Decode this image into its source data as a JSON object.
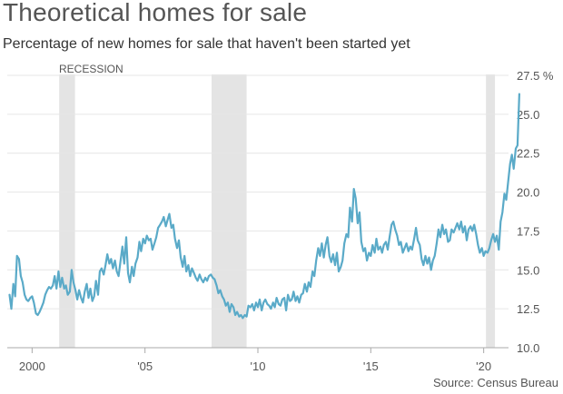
{
  "header": {
    "title": "Theoretical homes for sale",
    "subtitle": "Percentage of new homes for sale that haven't been started yet"
  },
  "footer": {
    "source": "Source: Census Bureau"
  },
  "colors": {
    "line": "#5aaac8",
    "recession": "#e4e4e4",
    "grid": "#e6e6e6",
    "axis": "#aaaaaa"
  },
  "chart_data": {
    "type": "line",
    "title": "Theoretical homes for sale",
    "subtitle": "Percentage of new homes for sale that haven't been started yet",
    "ylim": [
      10,
      27.5
    ],
    "xlim": [
      1998.9,
      2021.1
    ],
    "y_ticks": [
      10.0,
      12.5,
      15.0,
      17.5,
      20.0,
      22.5,
      25.0,
      27.5
    ],
    "y_tick_labels": [
      "10.0",
      "12.5",
      "15.0",
      "17.5",
      "20.0",
      "22.5",
      "25.0",
      "27.5 %"
    ],
    "x_ticks": [
      2000,
      2005,
      2010,
      2015,
      2020
    ],
    "x_tick_labels": [
      "2000",
      "'05",
      "'10",
      "'15",
      "'20"
    ],
    "grid": "horizontal",
    "annotations": [
      {
        "text": "RECESSION"
      }
    ],
    "recessions": [
      {
        "start": 2001.2,
        "end": 2001.9
      },
      {
        "start": 2007.95,
        "end": 2009.5
      },
      {
        "start": 2020.1,
        "end": 2020.5
      }
    ],
    "series": [
      {
        "points": [
          [
            1999.0,
            13.4
          ],
          [
            1999.08,
            12.5
          ],
          [
            1999.17,
            14.1
          ],
          [
            1999.25,
            13.3
          ],
          [
            1999.33,
            15.9
          ],
          [
            1999.42,
            15.7
          ],
          [
            1999.5,
            14.6
          ],
          [
            1999.58,
            14.2
          ],
          [
            1999.67,
            13.4
          ],
          [
            1999.75,
            13.1
          ],
          [
            1999.83,
            13.0
          ],
          [
            1999.92,
            13.2
          ],
          [
            2000.0,
            13.3
          ],
          [
            2000.08,
            12.9
          ],
          [
            2000.17,
            12.2
          ],
          [
            2000.25,
            12.1
          ],
          [
            2000.33,
            12.3
          ],
          [
            2000.42,
            12.6
          ],
          [
            2000.5,
            12.9
          ],
          [
            2000.58,
            13.4
          ],
          [
            2000.67,
            13.7
          ],
          [
            2000.75,
            13.9
          ],
          [
            2000.83,
            13.8
          ],
          [
            2000.92,
            14.0
          ],
          [
            2001.0,
            14.6
          ],
          [
            2001.08,
            13.8
          ],
          [
            2001.17,
            14.9
          ],
          [
            2001.25,
            13.9
          ],
          [
            2001.33,
            14.5
          ],
          [
            2001.42,
            13.8
          ],
          [
            2001.5,
            14.0
          ],
          [
            2001.58,
            13.4
          ],
          [
            2001.67,
            13.6
          ],
          [
            2001.75,
            15.0
          ],
          [
            2001.83,
            14.2
          ],
          [
            2001.92,
            13.7
          ],
          [
            2002.0,
            13.1
          ],
          [
            2002.08,
            13.7
          ],
          [
            2002.17,
            13.2
          ],
          [
            2002.25,
            12.9
          ],
          [
            2002.33,
            13.6
          ],
          [
            2002.42,
            14.1
          ],
          [
            2002.5,
            13.2
          ],
          [
            2002.58,
            13.8
          ],
          [
            2002.67,
            13.0
          ],
          [
            2002.75,
            13.3
          ],
          [
            2002.83,
            14.3
          ],
          [
            2002.92,
            13.4
          ],
          [
            2003.0,
            14.9
          ],
          [
            2003.08,
            15.1
          ],
          [
            2003.17,
            14.7
          ],
          [
            2003.25,
            15.3
          ],
          [
            2003.33,
            16.0
          ],
          [
            2003.42,
            15.4
          ],
          [
            2003.5,
            15.7
          ],
          [
            2003.58,
            15.1
          ],
          [
            2003.67,
            15.6
          ],
          [
            2003.75,
            14.9
          ],
          [
            2003.83,
            14.6
          ],
          [
            2003.92,
            15.6
          ],
          [
            2004.0,
            16.5
          ],
          [
            2004.08,
            15.4
          ],
          [
            2004.17,
            17.1
          ],
          [
            2004.25,
            14.8
          ],
          [
            2004.33,
            14.2
          ],
          [
            2004.42,
            15.2
          ],
          [
            2004.5,
            14.6
          ],
          [
            2004.58,
            15.4
          ],
          [
            2004.67,
            15.8
          ],
          [
            2004.75,
            16.8
          ],
          [
            2004.83,
            16.2
          ],
          [
            2004.92,
            17.0
          ],
          [
            2005.0,
            16.7
          ],
          [
            2005.08,
            17.2
          ],
          [
            2005.17,
            16.9
          ],
          [
            2005.25,
            17.0
          ],
          [
            2005.33,
            16.3
          ],
          [
            2005.42,
            16.7
          ],
          [
            2005.5,
            17.1
          ],
          [
            2005.58,
            17.7
          ],
          [
            2005.67,
            17.9
          ],
          [
            2005.75,
            18.1
          ],
          [
            2005.83,
            18.4
          ],
          [
            2005.92,
            17.8
          ],
          [
            2006.0,
            18.2
          ],
          [
            2006.08,
            18.6
          ],
          [
            2006.17,
            17.7
          ],
          [
            2006.25,
            17.9
          ],
          [
            2006.33,
            17.0
          ],
          [
            2006.42,
            16.4
          ],
          [
            2006.5,
            16.9
          ],
          [
            2006.58,
            15.8
          ],
          [
            2006.67,
            15.2
          ],
          [
            2006.75,
            15.9
          ],
          [
            2006.83,
            14.9
          ],
          [
            2006.92,
            15.3
          ],
          [
            2007.0,
            14.6
          ],
          [
            2007.08,
            15.1
          ],
          [
            2007.17,
            14.8
          ],
          [
            2007.25,
            14.5
          ],
          [
            2007.33,
            14.3
          ],
          [
            2007.42,
            14.7
          ],
          [
            2007.5,
            14.4
          ],
          [
            2007.58,
            14.2
          ],
          [
            2007.67,
            14.5
          ],
          [
            2007.75,
            14.3
          ],
          [
            2007.83,
            14.6
          ],
          [
            2007.92,
            14.7
          ],
          [
            2008.0,
            14.5
          ],
          [
            2008.08,
            14.4
          ],
          [
            2008.17,
            14.0
          ],
          [
            2008.25,
            13.5
          ],
          [
            2008.33,
            13.7
          ],
          [
            2008.42,
            13.3
          ],
          [
            2008.5,
            13.1
          ],
          [
            2008.58,
            12.7
          ],
          [
            2008.67,
            12.9
          ],
          [
            2008.75,
            12.3
          ],
          [
            2008.83,
            12.8
          ],
          [
            2008.92,
            12.6
          ],
          [
            2009.0,
            12.1
          ],
          [
            2009.08,
            12.3
          ],
          [
            2009.17,
            12.0
          ],
          [
            2009.25,
            12.1
          ],
          [
            2009.33,
            11.9
          ],
          [
            2009.42,
            12.1
          ],
          [
            2009.5,
            12.0
          ],
          [
            2009.58,
            12.7
          ],
          [
            2009.67,
            12.6
          ],
          [
            2009.75,
            12.8
          ],
          [
            2009.83,
            12.4
          ],
          [
            2009.92,
            12.9
          ],
          [
            2010.0,
            12.6
          ],
          [
            2010.08,
            13.1
          ],
          [
            2010.17,
            12.4
          ],
          [
            2010.25,
            12.9
          ],
          [
            2010.33,
            13.1
          ],
          [
            2010.42,
            12.8
          ],
          [
            2010.5,
            12.7
          ],
          [
            2010.58,
            12.5
          ],
          [
            2010.67,
            12.9
          ],
          [
            2010.75,
            12.6
          ],
          [
            2010.83,
            13.2
          ],
          [
            2010.92,
            12.8
          ],
          [
            2011.0,
            12.7
          ],
          [
            2011.08,
            13.1
          ],
          [
            2011.17,
            13.2
          ],
          [
            2011.25,
            12.4
          ],
          [
            2011.33,
            13.4
          ],
          [
            2011.42,
            13.0
          ],
          [
            2011.5,
            13.1
          ],
          [
            2011.58,
            13.6
          ],
          [
            2011.67,
            13.0
          ],
          [
            2011.75,
            13.3
          ],
          [
            2011.83,
            12.9
          ],
          [
            2011.92,
            13.4
          ],
          [
            2012.0,
            13.5
          ],
          [
            2012.08,
            14.1
          ],
          [
            2012.17,
            13.6
          ],
          [
            2012.25,
            14.2
          ],
          [
            2012.33,
            13.9
          ],
          [
            2012.42,
            14.9
          ],
          [
            2012.5,
            14.6
          ],
          [
            2012.58,
            15.6
          ],
          [
            2012.67,
            16.4
          ],
          [
            2012.75,
            15.9
          ],
          [
            2012.83,
            16.7
          ],
          [
            2012.92,
            15.8
          ],
          [
            2013.0,
            16.6
          ],
          [
            2013.08,
            17.1
          ],
          [
            2013.17,
            15.9
          ],
          [
            2013.25,
            15.5
          ],
          [
            2013.33,
            16.0
          ],
          [
            2013.42,
            15.3
          ],
          [
            2013.5,
            16.1
          ],
          [
            2013.58,
            14.9
          ],
          [
            2013.67,
            15.2
          ],
          [
            2013.75,
            15.6
          ],
          [
            2013.83,
            16.7
          ],
          [
            2013.92,
            17.3
          ],
          [
            2014.0,
            17.1
          ],
          [
            2014.08,
            19.0
          ],
          [
            2014.17,
            18.1
          ],
          [
            2014.25,
            20.2
          ],
          [
            2014.33,
            19.6
          ],
          [
            2014.42,
            18.0
          ],
          [
            2014.5,
            18.7
          ],
          [
            2014.58,
            16.8
          ],
          [
            2014.67,
            16.2
          ],
          [
            2014.75,
            16.4
          ],
          [
            2014.83,
            15.6
          ],
          [
            2014.92,
            16.1
          ],
          [
            2015.0,
            15.9
          ],
          [
            2015.08,
            16.6
          ],
          [
            2015.17,
            16.1
          ],
          [
            2015.25,
            17.0
          ],
          [
            2015.33,
            16.3
          ],
          [
            2015.42,
            16.5
          ],
          [
            2015.5,
            16.1
          ],
          [
            2015.58,
            16.6
          ],
          [
            2015.67,
            16.8
          ],
          [
            2015.75,
            16.3
          ],
          [
            2015.83,
            17.1
          ],
          [
            2015.92,
            17.9
          ],
          [
            2016.0,
            18.1
          ],
          [
            2016.08,
            17.6
          ],
          [
            2016.17,
            17.2
          ],
          [
            2016.25,
            16.6
          ],
          [
            2016.33,
            16.8
          ],
          [
            2016.42,
            16.1
          ],
          [
            2016.5,
            16.4
          ],
          [
            2016.58,
            16.7
          ],
          [
            2016.67,
            16.2
          ],
          [
            2016.75,
            16.5
          ],
          [
            2016.83,
            16.3
          ],
          [
            2016.92,
            17.0
          ],
          [
            2017.0,
            17.7
          ],
          [
            2017.08,
            16.9
          ],
          [
            2017.17,
            16.6
          ],
          [
            2017.25,
            15.7
          ],
          [
            2017.33,
            15.3
          ],
          [
            2017.42,
            15.9
          ],
          [
            2017.5,
            15.4
          ],
          [
            2017.58,
            15.8
          ],
          [
            2017.67,
            15.0
          ],
          [
            2017.75,
            15.6
          ],
          [
            2017.83,
            15.9
          ],
          [
            2017.92,
            16.7
          ],
          [
            2018.0,
            17.6
          ],
          [
            2018.08,
            17.1
          ],
          [
            2018.17,
            17.9
          ],
          [
            2018.25,
            17.3
          ],
          [
            2018.33,
            17.6
          ],
          [
            2018.42,
            16.8
          ],
          [
            2018.5,
            16.9
          ],
          [
            2018.58,
            17.6
          ],
          [
            2018.67,
            17.4
          ],
          [
            2018.75,
            17.7
          ],
          [
            2018.83,
            18.0
          ],
          [
            2018.92,
            17.6
          ],
          [
            2019.0,
            18.1
          ],
          [
            2019.08,
            17.4
          ],
          [
            2019.17,
            17.8
          ],
          [
            2019.25,
            16.9
          ],
          [
            2019.33,
            17.6
          ],
          [
            2019.42,
            17.8
          ],
          [
            2019.5,
            17.5
          ],
          [
            2019.58,
            17.9
          ],
          [
            2019.67,
            17.3
          ],
          [
            2019.75,
            16.6
          ],
          [
            2019.83,
            16.1
          ],
          [
            2019.92,
            16.4
          ],
          [
            2020.0,
            15.9
          ],
          [
            2020.08,
            16.2
          ],
          [
            2020.17,
            16.1
          ],
          [
            2020.25,
            16.4
          ],
          [
            2020.33,
            16.9
          ],
          [
            2020.42,
            17.3
          ],
          [
            2020.5,
            16.8
          ],
          [
            2020.58,
            17.2
          ],
          [
            2020.67,
            16.3
          ],
          [
            2020.75,
            18.1
          ],
          [
            2020.83,
            18.7
          ],
          [
            2020.92,
            19.9
          ],
          [
            2021.0,
            19.5
          ],
          [
            2021.08,
            20.6
          ],
          [
            2021.17,
            21.8
          ],
          [
            2021.25,
            22.4
          ],
          [
            2021.33,
            21.5
          ],
          [
            2021.42,
            22.8
          ],
          [
            2021.5,
            23.0
          ],
          [
            2021.58,
            26.3
          ]
        ]
      }
    ]
  }
}
